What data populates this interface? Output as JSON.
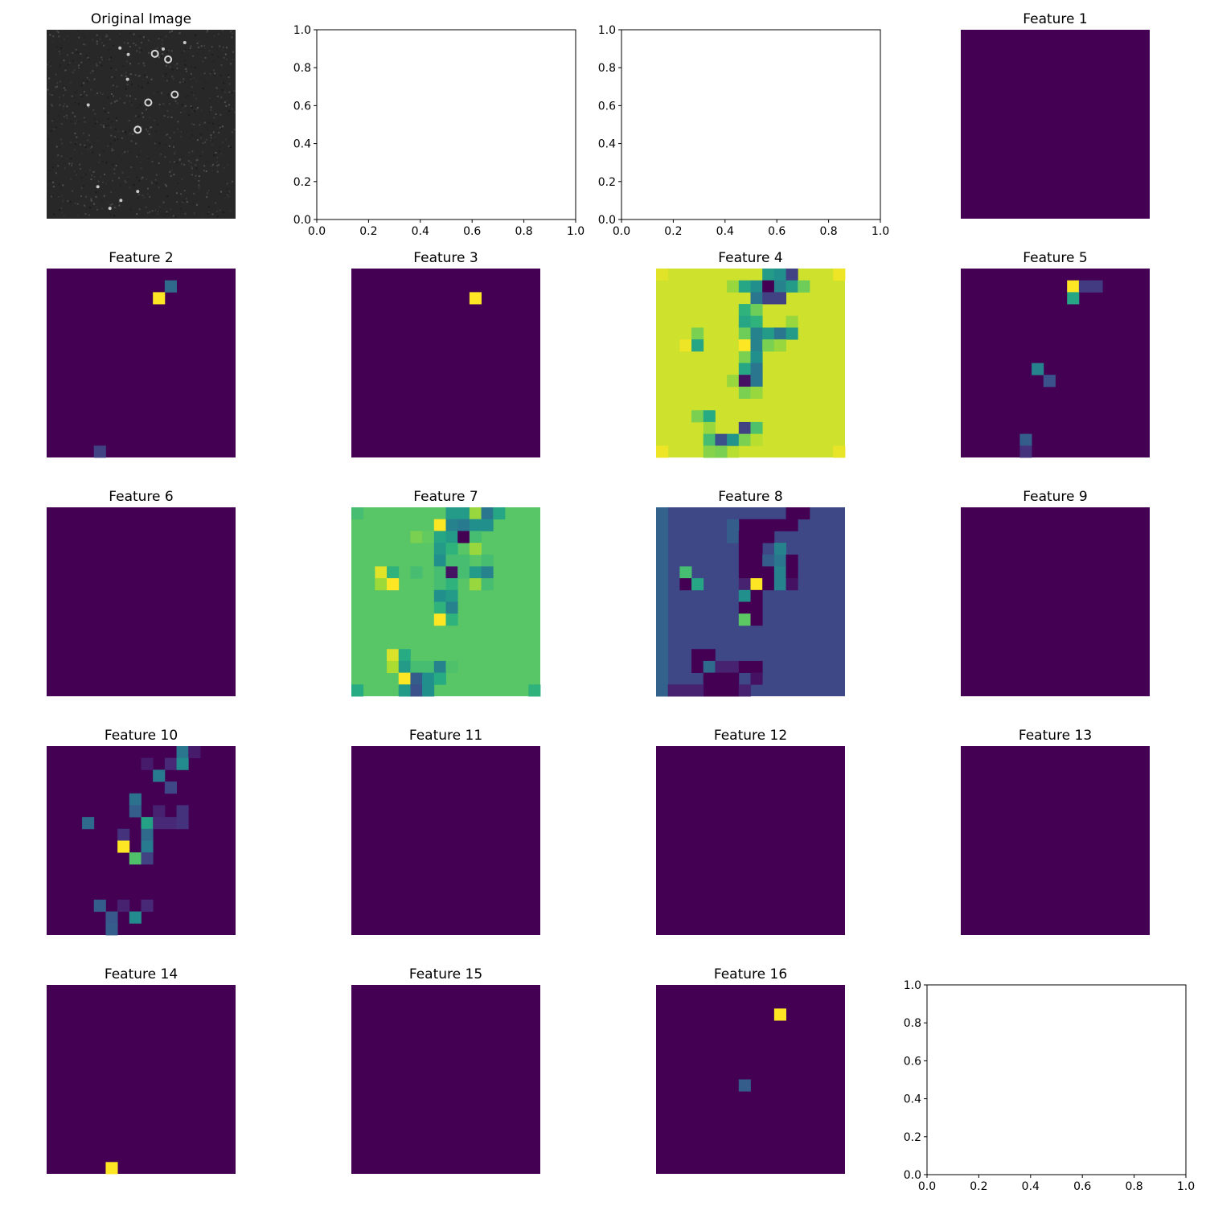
{
  "figure": {
    "original_title": "Original Image",
    "feature_title_prefix": "Feature",
    "empty_axes": {
      "ticks": [
        "0.0",
        "0.2",
        "0.4",
        "0.6",
        "0.8",
        "1.0"
      ]
    }
  },
  "chart_data": [
    {
      "type": "image",
      "title": "Original Image",
      "colormap": "gray",
      "background": "#282828",
      "features": [
        {
          "kind": "ring",
          "col": 0.573,
          "row": 0.127
        },
        {
          "kind": "ring",
          "col": 0.643,
          "row": 0.157
        },
        {
          "kind": "ring",
          "col": 0.678,
          "row": 0.343
        },
        {
          "kind": "ring",
          "col": 0.538,
          "row": 0.385
        },
        {
          "kind": "ring",
          "col": 0.482,
          "row": 0.529
        },
        {
          "kind": "dot",
          "col": 0.432,
          "row": 0.131
        },
        {
          "kind": "dot",
          "col": 0.617,
          "row": 0.102
        },
        {
          "kind": "dot",
          "col": 0.731,
          "row": 0.068
        },
        {
          "kind": "dot",
          "col": 0.428,
          "row": 0.262
        },
        {
          "kind": "dot",
          "col": 0.22,
          "row": 0.398
        },
        {
          "kind": "dot",
          "col": 0.388,
          "row": 0.097
        },
        {
          "kind": "dot",
          "col": 0.271,
          "row": 0.831
        },
        {
          "kind": "dot",
          "col": 0.482,
          "row": 0.856
        },
        {
          "kind": "dot",
          "col": 0.393,
          "row": 0.903
        },
        {
          "kind": "dot",
          "col": 0.335,
          "row": 0.945
        }
      ]
    },
    {
      "type": "empty",
      "xlim": [
        0,
        1
      ],
      "ylim": [
        0,
        1
      ]
    },
    {
      "type": "empty",
      "xlim": [
        0,
        1
      ],
      "ylim": [
        0,
        1
      ]
    },
    {
      "type": "heatmap",
      "title": "Feature 1",
      "colormap": "viridis",
      "grid": [
        16,
        16
      ],
      "background": 0.0,
      "cells": []
    },
    {
      "type": "heatmap",
      "title": "Feature 2",
      "colormap": "viridis",
      "grid": [
        16,
        16
      ],
      "background": 0.0,
      "cells": [
        [
          10,
          1,
          0.35
        ],
        [
          9,
          2,
          1.0
        ],
        [
          4,
          15,
          0.2
        ]
      ]
    },
    {
      "type": "heatmap",
      "title": "Feature 3",
      "colormap": "viridis",
      "grid": [
        16,
        16
      ],
      "background": 0.0,
      "cells": [
        [
          10,
          2,
          1.0
        ]
      ]
    },
    {
      "type": "heatmap",
      "title": "Feature 4",
      "colormap": "viridis",
      "grid": [
        16,
        16
      ],
      "background": 0.93,
      "cells": [
        [
          0,
          0,
          0.96
        ],
        [
          15,
          0,
          0.98
        ],
        [
          0,
          15,
          0.98
        ],
        [
          15,
          15,
          0.97
        ],
        [
          5,
          15,
          0.85
        ],
        [
          4,
          15,
          0.85
        ],
        [
          6,
          15,
          0.9
        ],
        [
          6,
          1,
          0.85
        ],
        [
          7,
          1,
          0.6
        ],
        [
          8,
          1,
          0.5
        ],
        [
          9,
          0,
          0.55
        ],
        [
          9,
          1,
          0.0
        ],
        [
          10,
          0,
          0.5
        ],
        [
          10,
          1,
          0.45
        ],
        [
          11,
          0,
          0.2
        ],
        [
          11,
          1,
          0.55
        ],
        [
          12,
          1,
          0.78
        ],
        [
          8,
          2,
          0.4
        ],
        [
          9,
          2,
          0.2
        ],
        [
          10,
          2,
          0.2
        ],
        [
          7,
          3,
          0.65
        ],
        [
          8,
          3,
          0.78
        ],
        [
          7,
          4,
          0.6
        ],
        [
          8,
          4,
          0.65
        ],
        [
          11,
          4,
          0.85
        ],
        [
          3,
          5,
          0.8
        ],
        [
          7,
          5,
          0.78
        ],
        [
          8,
          5,
          0.45
        ],
        [
          9,
          5,
          0.55
        ],
        [
          10,
          5,
          0.4
        ],
        [
          11,
          5,
          0.55
        ],
        [
          2,
          6,
          0.98
        ],
        [
          3,
          6,
          0.6
        ],
        [
          7,
          6,
          1.0
        ],
        [
          8,
          6,
          0.45
        ],
        [
          9,
          6,
          0.8
        ],
        [
          10,
          6,
          0.85
        ],
        [
          7,
          7,
          0.8
        ],
        [
          8,
          7,
          0.5
        ],
        [
          7,
          8,
          0.6
        ],
        [
          8,
          8,
          0.4
        ],
        [
          6,
          9,
          0.85
        ],
        [
          7,
          9,
          0.05
        ],
        [
          8,
          9,
          0.4
        ],
        [
          7,
          10,
          0.8
        ],
        [
          8,
          10,
          0.85
        ],
        [
          3,
          12,
          0.8
        ],
        [
          4,
          12,
          0.62
        ],
        [
          4,
          13,
          0.85
        ],
        [
          7,
          13,
          0.2
        ],
        [
          8,
          13,
          0.72
        ],
        [
          4,
          14,
          0.7
        ],
        [
          5,
          14,
          0.25
        ],
        [
          6,
          14,
          0.52
        ],
        [
          7,
          14,
          0.8
        ],
        [
          8,
          14,
          0.9
        ],
        [
          4,
          15,
          0.82
        ],
        [
          5,
          15,
          0.8
        ]
      ]
    },
    {
      "type": "heatmap",
      "title": "Feature 5",
      "colormap": "viridis",
      "grid": [
        16,
        16
      ],
      "background": 0.0,
      "cells": [
        [
          9,
          1,
          1.0
        ],
        [
          10,
          1,
          0.18
        ],
        [
          11,
          1,
          0.18
        ],
        [
          9,
          2,
          0.6
        ],
        [
          6,
          8,
          0.45
        ],
        [
          7,
          9,
          0.25
        ],
        [
          5,
          14,
          0.3
        ],
        [
          5,
          15,
          0.15
        ]
      ]
    },
    {
      "type": "heatmap",
      "title": "Feature 6",
      "colormap": "viridis",
      "grid": [
        16,
        16
      ],
      "background": 0.0,
      "cells": []
    },
    {
      "type": "heatmap",
      "title": "Feature 7",
      "colormap": "viridis",
      "grid": [
        16,
        16
      ],
      "background": 0.74,
      "cells": [
        [
          0,
          0,
          0.7
        ],
        [
          8,
          0,
          0.55
        ],
        [
          9,
          0,
          0.55
        ],
        [
          10,
          0,
          0.85
        ],
        [
          11,
          0,
          0.4
        ],
        [
          12,
          0,
          0.6
        ],
        [
          7,
          1,
          1.0
        ],
        [
          8,
          1,
          0.45
        ],
        [
          9,
          1,
          0.42
        ],
        [
          10,
          1,
          0.5
        ],
        [
          11,
          1,
          0.5
        ],
        [
          5,
          2,
          0.8
        ],
        [
          6,
          2,
          0.76
        ],
        [
          7,
          2,
          0.6
        ],
        [
          8,
          2,
          0.55
        ],
        [
          9,
          2,
          0.0
        ],
        [
          10,
          2,
          0.7
        ],
        [
          7,
          3,
          0.55
        ],
        [
          8,
          3,
          0.65
        ],
        [
          10,
          3,
          0.85
        ],
        [
          7,
          4,
          0.5
        ],
        [
          8,
          4,
          0.7
        ],
        [
          9,
          4,
          0.7
        ],
        [
          11,
          4,
          0.7
        ],
        [
          2,
          5,
          0.96
        ],
        [
          3,
          5,
          0.65
        ],
        [
          5,
          5,
          0.7
        ],
        [
          7,
          5,
          0.7
        ],
        [
          8,
          5,
          0.05
        ],
        [
          9,
          5,
          0.7
        ],
        [
          10,
          5,
          0.55
        ],
        [
          11,
          5,
          0.45
        ],
        [
          2,
          6,
          0.86
        ],
        [
          3,
          6,
          1.0
        ],
        [
          7,
          6,
          0.7
        ],
        [
          8,
          6,
          0.65
        ],
        [
          10,
          6,
          0.85
        ],
        [
          11,
          6,
          0.7
        ],
        [
          7,
          7,
          0.5
        ],
        [
          8,
          7,
          0.55
        ],
        [
          7,
          8,
          0.65
        ],
        [
          8,
          8,
          0.45
        ],
        [
          7,
          9,
          1.0
        ],
        [
          8,
          9,
          0.65
        ],
        [
          3,
          12,
          0.95
        ],
        [
          4,
          12,
          0.62
        ],
        [
          3,
          13,
          0.88
        ],
        [
          4,
          13,
          0.55
        ],
        [
          5,
          13,
          0.7
        ],
        [
          6,
          13,
          0.7
        ],
        [
          7,
          13,
          0.45
        ],
        [
          8,
          13,
          0.72
        ],
        [
          4,
          14,
          1.0
        ],
        [
          5,
          14,
          0.3
        ],
        [
          6,
          14,
          0.5
        ],
        [
          7,
          14,
          0.62
        ],
        [
          0,
          15,
          0.62
        ],
        [
          4,
          15,
          0.55
        ],
        [
          5,
          15,
          0.25
        ],
        [
          6,
          15,
          0.5
        ],
        [
          15,
          15,
          0.65
        ]
      ]
    },
    {
      "type": "heatmap",
      "title": "Feature 8",
      "colormap": "viridis",
      "grid": [
        16,
        16
      ],
      "background": 0.22,
      "cells": [
        [
          0,
          0,
          0.32
        ],
        [
          0,
          1,
          0.32
        ],
        [
          0,
          2,
          0.32
        ],
        [
          0,
          3,
          0.32
        ],
        [
          0,
          4,
          0.32
        ],
        [
          0,
          5,
          0.32
        ],
        [
          0,
          6,
          0.32
        ],
        [
          0,
          7,
          0.32
        ],
        [
          0,
          8,
          0.32
        ],
        [
          0,
          9,
          0.32
        ],
        [
          0,
          10,
          0.32
        ],
        [
          0,
          11,
          0.32
        ],
        [
          0,
          12,
          0.32
        ],
        [
          0,
          13,
          0.32
        ],
        [
          0,
          14,
          0.32
        ],
        [
          0,
          15,
          0.32
        ],
        [
          11,
          0,
          0.0
        ],
        [
          12,
          0,
          0.0
        ],
        [
          7,
          1,
          0.0
        ],
        [
          8,
          1,
          0.0
        ],
        [
          9,
          1,
          0.0
        ],
        [
          10,
          1,
          0.0
        ],
        [
          11,
          1,
          0.0
        ],
        [
          6,
          1,
          0.3
        ],
        [
          6,
          2,
          0.3
        ],
        [
          7,
          2,
          0.0
        ],
        [
          8,
          2,
          0.0
        ],
        [
          9,
          2,
          0.0
        ],
        [
          7,
          3,
          0.0
        ],
        [
          8,
          3,
          0.0
        ],
        [
          10,
          3,
          0.45
        ],
        [
          7,
          4,
          0.0
        ],
        [
          8,
          4,
          0.0
        ],
        [
          9,
          4,
          0.3
        ],
        [
          10,
          4,
          0.4
        ],
        [
          11,
          4,
          0.0
        ],
        [
          2,
          5,
          0.7
        ],
        [
          7,
          5,
          0.0
        ],
        [
          8,
          5,
          0.0
        ],
        [
          9,
          5,
          0.0
        ],
        [
          10,
          5,
          0.45
        ],
        [
          11,
          5,
          0.0
        ],
        [
          2,
          6,
          0.0
        ],
        [
          3,
          6,
          0.6
        ],
        [
          7,
          6,
          0.1
        ],
        [
          8,
          6,
          1.0
        ],
        [
          9,
          6,
          0.0
        ],
        [
          10,
          6,
          0.45
        ],
        [
          11,
          6,
          0.05
        ],
        [
          7,
          7,
          0.5
        ],
        [
          8,
          7,
          0.0
        ],
        [
          7,
          8,
          0.0
        ],
        [
          8,
          8,
          0.0
        ],
        [
          7,
          9,
          0.75
        ],
        [
          8,
          9,
          0.0
        ],
        [
          3,
          12,
          0.0
        ],
        [
          4,
          12,
          0.0
        ],
        [
          3,
          13,
          0.0
        ],
        [
          4,
          13,
          0.35
        ],
        [
          5,
          13,
          0.1
        ],
        [
          6,
          13,
          0.1
        ],
        [
          7,
          13,
          0.0
        ],
        [
          8,
          13,
          0.0
        ],
        [
          4,
          14,
          0.0
        ],
        [
          5,
          14,
          0.0
        ],
        [
          6,
          14,
          0.0
        ],
        [
          8,
          14,
          0.05
        ],
        [
          4,
          15,
          0.0
        ],
        [
          5,
          15,
          0.0
        ],
        [
          6,
          15,
          0.0
        ],
        [
          1,
          15,
          0.1
        ],
        [
          2,
          15,
          0.1
        ],
        [
          3,
          15,
          0.1
        ],
        [
          7,
          15,
          0.1
        ]
      ]
    },
    {
      "type": "heatmap",
      "title": "Feature 9",
      "colormap": "viridis",
      "grid": [
        16,
        16
      ],
      "background": 0.0,
      "cells": []
    },
    {
      "type": "heatmap",
      "title": "Feature 10",
      "colormap": "viridis",
      "grid": [
        16,
        16
      ],
      "background": 0.0,
      "cells": [
        [
          11,
          0,
          0.4
        ],
        [
          12,
          0,
          0.08
        ],
        [
          8,
          1,
          0.08
        ],
        [
          10,
          1,
          0.12
        ],
        [
          11,
          1,
          0.48
        ],
        [
          9,
          2,
          0.42
        ],
        [
          10,
          3,
          0.22
        ],
        [
          7,
          4,
          0.38
        ],
        [
          7,
          5,
          0.3
        ],
        [
          9,
          5,
          0.1
        ],
        [
          11,
          5,
          0.15
        ],
        [
          3,
          6,
          0.35
        ],
        [
          8,
          6,
          0.58
        ],
        [
          9,
          6,
          0.12
        ],
        [
          10,
          6,
          0.12
        ],
        [
          11,
          6,
          0.15
        ],
        [
          6,
          7,
          0.15
        ],
        [
          8,
          7,
          0.35
        ],
        [
          6,
          8,
          1.0
        ],
        [
          8,
          8,
          0.42
        ],
        [
          7,
          9,
          0.72
        ],
        [
          8,
          9,
          0.2
        ],
        [
          4,
          13,
          0.3
        ],
        [
          6,
          13,
          0.1
        ],
        [
          8,
          13,
          0.12
        ],
        [
          5,
          14,
          0.28
        ],
        [
          7,
          14,
          0.48
        ],
        [
          5,
          15,
          0.3
        ]
      ]
    },
    {
      "type": "heatmap",
      "title": "Feature 11",
      "colormap": "viridis",
      "grid": [
        16,
        16
      ],
      "background": 0.0,
      "cells": []
    },
    {
      "type": "heatmap",
      "title": "Feature 12",
      "colormap": "viridis",
      "grid": [
        16,
        16
      ],
      "background": 0.0,
      "cells": []
    },
    {
      "type": "heatmap",
      "title": "Feature 13",
      "colormap": "viridis",
      "grid": [
        16,
        16
      ],
      "background": 0.0,
      "cells": []
    },
    {
      "type": "heatmap",
      "title": "Feature 14",
      "colormap": "viridis",
      "grid": [
        16,
        16
      ],
      "background": 0.0,
      "cells": [
        [
          5,
          15,
          1.0
        ]
      ]
    },
    {
      "type": "heatmap",
      "title": "Feature 15",
      "colormap": "viridis",
      "grid": [
        16,
        16
      ],
      "background": 0.0,
      "cells": []
    },
    {
      "type": "heatmap",
      "title": "Feature 16",
      "colormap": "viridis",
      "grid": [
        16,
        16
      ],
      "background": 0.0,
      "cells": [
        [
          10,
          2,
          1.0
        ],
        [
          7,
          8,
          0.3
        ]
      ]
    },
    {
      "type": "empty",
      "xlim": [
        0,
        1
      ],
      "ylim": [
        0,
        1
      ]
    }
  ]
}
